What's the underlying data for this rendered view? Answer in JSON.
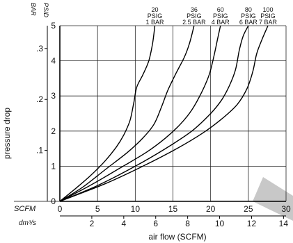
{
  "chart_data": {
    "type": "line",
    "xlabel": "air flow (SCFM)",
    "ylabel": "pressure drop",
    "x_primary": {
      "unit_label": "SCFM",
      "range": [
        0,
        30
      ],
      "ticks": [
        {
          "v": 0,
          "label": "0"
        },
        {
          "v": 5,
          "label": "5"
        },
        {
          "v": 10,
          "label": "10"
        },
        {
          "v": 15,
          "label": "15"
        },
        {
          "v": 20,
          "label": "20"
        },
        {
          "v": 25,
          "label": "25"
        },
        {
          "v": 30,
          "label": "30"
        }
      ]
    },
    "x_secondary": {
      "unit_label": "dm³/s",
      "ticks": [
        {
          "v": 2,
          "label": "2"
        },
        {
          "v": 4,
          "label": "4"
        },
        {
          "v": 6,
          "label": "6"
        },
        {
          "v": 8,
          "label": "8"
        },
        {
          "v": 10,
          "label": "10"
        },
        {
          "v": 12,
          "label": "12"
        },
        {
          "v": 14,
          "label": "14"
        }
      ]
    },
    "y_primary": {
      "unit_label": "PSID",
      "range": [
        0,
        5
      ],
      "ticks": [
        {
          "v": 0,
          "label": "0"
        },
        {
          "v": 1,
          "label": "1"
        },
        {
          "v": 2,
          "label": "2"
        },
        {
          "v": 3,
          "label": "3"
        },
        {
          "v": 4,
          "label": "4"
        },
        {
          "v": 5,
          "label": "5"
        }
      ]
    },
    "y_secondary": {
      "unit_label": "BAR",
      "ticks": [
        {
          "v": 0.1,
          "label": ".1"
        },
        {
          "v": 0.2,
          "label": ".2"
        },
        {
          "v": 0.3,
          "label": ".3"
        }
      ]
    },
    "grid": true,
    "series": [
      {
        "name": "20 PSIG 1 BAR",
        "label_lines": [
          "20",
          "PSIG",
          "1 BAR"
        ],
        "points": [
          [
            0,
            0
          ],
          [
            2,
            0.35
          ],
          [
            4,
            0.72
          ],
          [
            6,
            1.15
          ],
          [
            7.5,
            1.55
          ],
          [
            8.5,
            1.9
          ],
          [
            9.3,
            2.3
          ],
          [
            9.8,
            2.8
          ],
          [
            10.2,
            3.25
          ],
          [
            11,
            3.6
          ],
          [
            11.8,
            4.0
          ],
          [
            12.3,
            4.5
          ],
          [
            12.6,
            5.0
          ]
        ]
      },
      {
        "name": "36 PSIG 2.5 BAR",
        "label_lines": [
          "36",
          "PSIG",
          "2.5 BAR"
        ],
        "points": [
          [
            0,
            0
          ],
          [
            3,
            0.4
          ],
          [
            6,
            0.9
          ],
          [
            9,
            1.4
          ],
          [
            11,
            1.8
          ],
          [
            12.5,
            2.2
          ],
          [
            13.5,
            2.7
          ],
          [
            14.3,
            3.15
          ],
          [
            15.3,
            3.6
          ],
          [
            16.5,
            4.1
          ],
          [
            17.2,
            4.5
          ],
          [
            17.8,
            5.0
          ]
        ]
      },
      {
        "name": "60 PSIG 4 BAR",
        "label_lines": [
          "60",
          "PSIG",
          "4 BAR"
        ],
        "points": [
          [
            0,
            0
          ],
          [
            4,
            0.45
          ],
          [
            8,
            0.95
          ],
          [
            11.5,
            1.4
          ],
          [
            14,
            1.8
          ],
          [
            16,
            2.2
          ],
          [
            17.5,
            2.6
          ],
          [
            18.8,
            3.1
          ],
          [
            19.8,
            3.6
          ],
          [
            20.4,
            4.1
          ],
          [
            20.9,
            4.6
          ],
          [
            21.3,
            5.0
          ]
        ]
      },
      {
        "name": "80 PSIG 6 BAR",
        "label_lines": [
          "80",
          "PSIG",
          "6 BAR"
        ],
        "points": [
          [
            0,
            0
          ],
          [
            5,
            0.45
          ],
          [
            10,
            1.0
          ],
          [
            14,
            1.5
          ],
          [
            17.5,
            2.0
          ],
          [
            20,
            2.5
          ],
          [
            21.5,
            2.9
          ],
          [
            22.5,
            3.3
          ],
          [
            23.3,
            3.75
          ],
          [
            23.8,
            4.3
          ],
          [
            24.3,
            4.7
          ],
          [
            25,
            5.0
          ]
        ]
      },
      {
        "name": "100 PSIG 7 BAR",
        "label_lines": [
          "100",
          "PSIG",
          "7 BAR"
        ],
        "points": [
          [
            0,
            0
          ],
          [
            6,
            0.5
          ],
          [
            11,
            1.0
          ],
          [
            15.5,
            1.5
          ],
          [
            19,
            1.95
          ],
          [
            21.5,
            2.35
          ],
          [
            23.5,
            2.75
          ],
          [
            24.8,
            3.2
          ],
          [
            25.6,
            3.7
          ],
          [
            26.1,
            4.2
          ],
          [
            26.8,
            4.6
          ],
          [
            27.6,
            5.0
          ]
        ]
      }
    ]
  }
}
